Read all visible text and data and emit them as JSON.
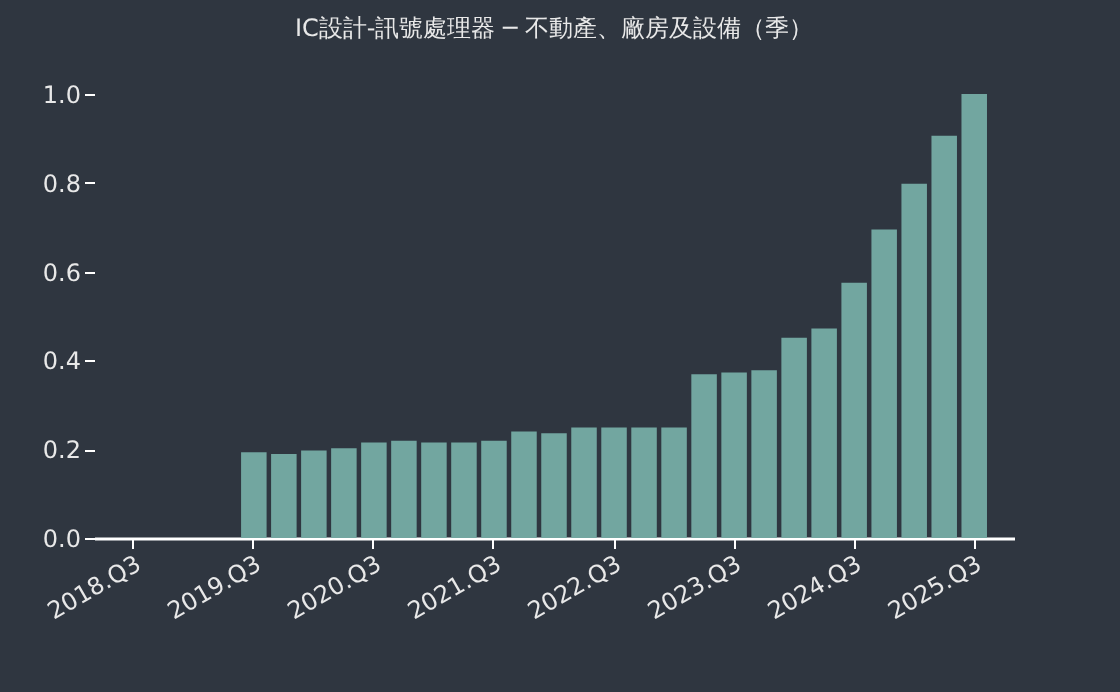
{
  "chart_data": {
    "type": "bar",
    "title": "IC設計-訊號處理器 ─ 不動產、廠房及設備（季）",
    "categories": [
      "2018.Q3",
      null,
      null,
      null,
      "2019.Q3",
      null,
      null,
      null,
      "2020.Q3",
      null,
      null,
      null,
      "2021.Q3",
      null,
      null,
      null,
      "2022.Q3",
      null,
      null,
      null,
      "2023.Q3",
      null,
      null,
      null,
      "2024.Q3",
      null,
      null,
      null,
      "2025.Q3"
    ],
    "values": [
      null,
      null,
      null,
      null,
      0.193,
      0.189,
      0.197,
      0.202,
      0.215,
      0.219,
      0.215,
      0.215,
      0.219,
      0.24,
      0.236,
      0.249,
      0.249,
      0.249,
      0.249,
      0.369,
      0.373,
      0.378,
      0.451,
      0.472,
      0.575,
      0.695,
      0.798,
      0.906,
      1.0
    ],
    "color": "#72a6a0",
    "ylim": [
      0,
      1
    ],
    "yticks": [
      {
        "value": 0,
        "label": "0.0"
      },
      0.2,
      0.4,
      0.6,
      0.8,
      {
        "value": 1,
        "label": "1.0"
      }
    ],
    "grid": false
  }
}
